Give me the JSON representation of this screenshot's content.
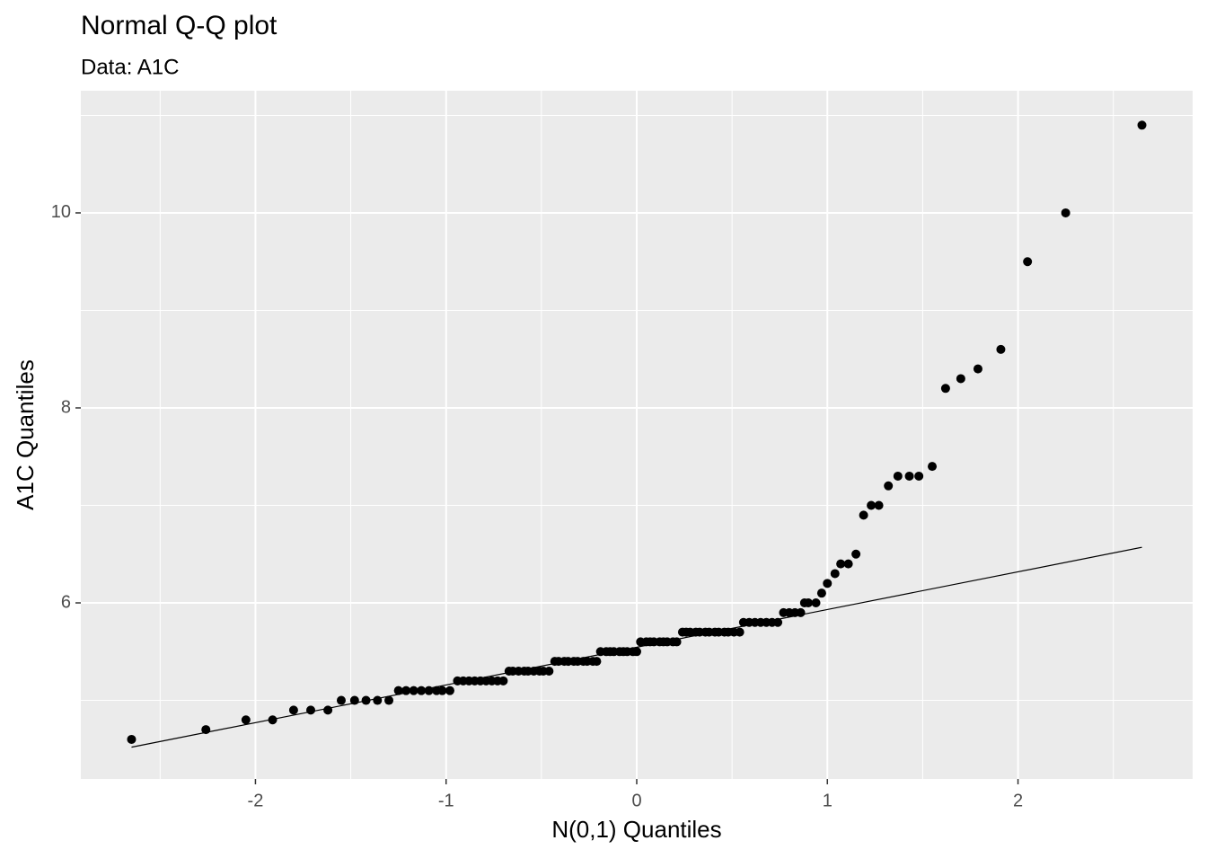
{
  "chart_data": {
    "type": "scatter",
    "title": "Normal Q-Q plot",
    "subtitle": "Data: A1C",
    "x_label": "N(0,1) Quantiles",
    "y_label": "A1C Quantiles",
    "xlim": [
      -2.916,
      2.916
    ],
    "ylim": [
      4.194,
      11.253
    ],
    "xticks": [
      -2,
      -1,
      0,
      1,
      2
    ],
    "yticks": [
      6,
      8,
      10
    ],
    "x_minor_ticks": [
      -2.5,
      -1.5,
      -0.5,
      0.5,
      1.5,
      2.5
    ],
    "y_minor_ticks": [
      5,
      7,
      9,
      11
    ],
    "grid": true,
    "color": "#000000",
    "x": [
      -2.65,
      -2.26,
      -2.05,
      -1.91,
      -1.8,
      -1.71,
      -1.62,
      -1.55,
      -1.48,
      -1.42,
      -1.36,
      -1.3,
      -1.25,
      -1.21,
      -1.17,
      -1.13,
      -1.09,
      -1.05,
      -1.02,
      -0.98,
      -0.94,
      -0.91,
      -0.88,
      -0.85,
      -0.82,
      -0.79,
      -0.76,
      -0.73,
      -0.7,
      -0.67,
      -0.65,
      -0.62,
      -0.59,
      -0.57,
      -0.54,
      -0.51,
      -0.49,
      -0.46,
      -0.43,
      -0.41,
      -0.38,
      -0.36,
      -0.33,
      -0.31,
      -0.28,
      -0.26,
      -0.23,
      -0.21,
      -0.19,
      -0.16,
      -0.14,
      -0.12,
      -0.09,
      -0.07,
      -0.05,
      -0.02,
      0.0,
      0.02,
      0.05,
      0.07,
      0.09,
      0.12,
      0.14,
      0.16,
      0.19,
      0.21,
      0.24,
      0.26,
      0.28,
      0.31,
      0.33,
      0.36,
      0.38,
      0.41,
      0.43,
      0.46,
      0.48,
      0.51,
      0.54,
      0.56,
      0.59,
      0.62,
      0.65,
      0.68,
      0.71,
      0.74,
      0.77,
      0.8,
      0.83,
      0.86,
      0.88,
      0.9,
      0.94,
      0.97,
      1.0,
      1.04,
      1.07,
      1.11,
      1.15,
      1.19,
      1.23,
      1.27,
      1.32,
      1.37,
      1.43,
      1.48,
      1.55,
      1.62,
      1.7,
      1.79,
      1.91,
      2.05,
      2.25,
      2.65
    ],
    "y": [
      4.6,
      4.7,
      4.8,
      4.8,
      4.9,
      4.9,
      4.9,
      5.0,
      5.0,
      5.0,
      5.0,
      5.0,
      5.1,
      5.1,
      5.1,
      5.1,
      5.1,
      5.1,
      5.1,
      5.1,
      5.2,
      5.2,
      5.2,
      5.2,
      5.2,
      5.2,
      5.2,
      5.2,
      5.2,
      5.3,
      5.3,
      5.3,
      5.3,
      5.3,
      5.3,
      5.3,
      5.3,
      5.3,
      5.4,
      5.4,
      5.4,
      5.4,
      5.4,
      5.4,
      5.4,
      5.4,
      5.4,
      5.4,
      5.5,
      5.5,
      5.5,
      5.5,
      5.5,
      5.5,
      5.5,
      5.5,
      5.5,
      5.6,
      5.6,
      5.6,
      5.6,
      5.6,
      5.6,
      5.6,
      5.6,
      5.6,
      5.7,
      5.7,
      5.7,
      5.7,
      5.7,
      5.7,
      5.7,
      5.7,
      5.7,
      5.7,
      5.7,
      5.7,
      5.7,
      5.8,
      5.8,
      5.8,
      5.8,
      5.8,
      5.8,
      5.8,
      5.9,
      5.9,
      5.9,
      5.9,
      6.0,
      6.0,
      6.0,
      6.1,
      6.2,
      6.3,
      6.4,
      6.4,
      6.5,
      6.9,
      7.0,
      7.0,
      7.2,
      7.3,
      7.3,
      7.3,
      7.4,
      8.2,
      8.3,
      8.4,
      8.6,
      9.5,
      10.0,
      10.9
    ],
    "reference_line": {
      "x": [
        -2.65,
        2.65
      ],
      "y": [
        4.52,
        6.57
      ]
    }
  }
}
